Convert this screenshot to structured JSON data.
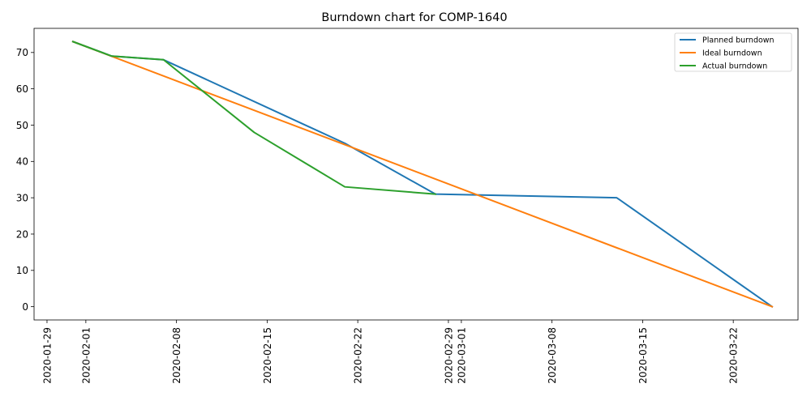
{
  "chart_data": {
    "type": "line",
    "title": "Burndown chart for COMP-1640",
    "xlabel": "",
    "ylabel": "",
    "x_type": "date",
    "xlim": [
      "2020-01-28",
      "2020-03-27"
    ],
    "ylim": [
      -3.65,
      76.65
    ],
    "x_ticks": [
      "2020-01-29",
      "2020-02-01",
      "2020-02-08",
      "2020-02-15",
      "2020-02-22",
      "2020-02-29",
      "2020-03-01",
      "2020-03-08",
      "2020-03-15",
      "2020-03-22"
    ],
    "y_ticks": [
      0,
      10,
      20,
      30,
      40,
      50,
      60,
      70
    ],
    "grid": false,
    "legend_position": "top-right",
    "series": [
      {
        "name": "Planned burndown",
        "color": "#1f77b4",
        "points": [
          [
            "2020-01-31",
            73
          ],
          [
            "2020-02-03",
            69
          ],
          [
            "2020-02-07",
            68
          ],
          [
            "2020-02-21",
            45
          ],
          [
            "2020-02-28",
            31
          ],
          [
            "2020-03-13",
            30
          ],
          [
            "2020-03-25",
            0
          ]
        ]
      },
      {
        "name": "Ideal burndown",
        "color": "#ff7f0e",
        "points": [
          [
            "2020-01-31",
            73
          ],
          [
            "2020-03-25",
            0
          ]
        ]
      },
      {
        "name": "Actual burndown",
        "color": "#2ca02c",
        "points": [
          [
            "2020-01-31",
            73
          ],
          [
            "2020-02-03",
            69
          ],
          [
            "2020-02-07",
            68
          ],
          [
            "2020-02-14",
            48
          ],
          [
            "2020-02-21",
            33
          ],
          [
            "2020-02-28",
            31
          ]
        ]
      }
    ]
  }
}
